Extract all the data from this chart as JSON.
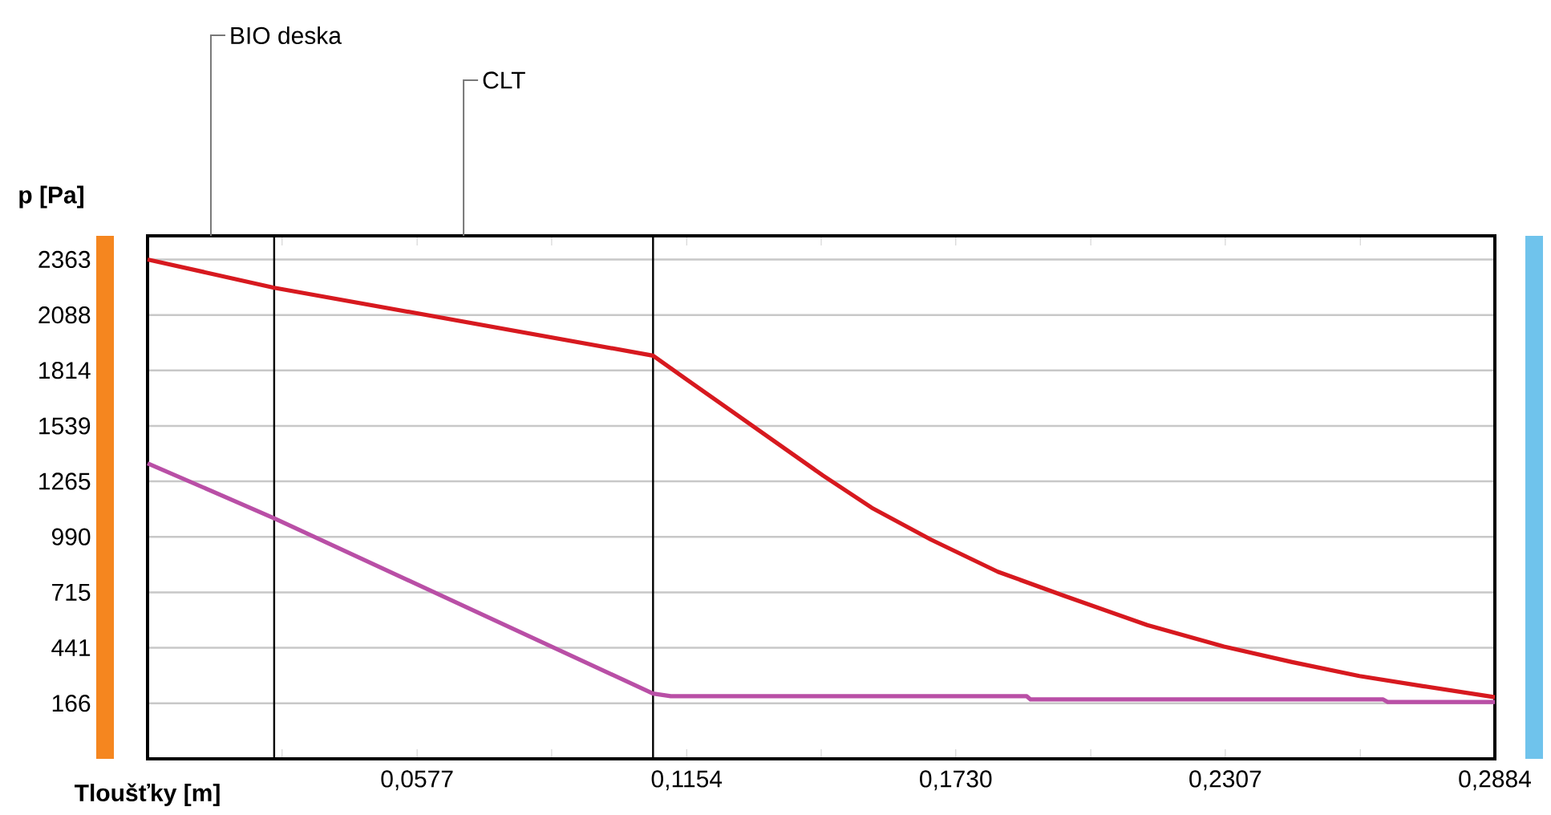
{
  "chart_data": {
    "type": "line",
    "xlabel": "**Tloušťky [m]**",
    "ylabel": "**p [Pa]**",
    "xlim": [
      0,
      0.2884
    ],
    "ylim": [
      -109,
      2480
    ],
    "xticks": [
      {
        "value": 0.0288,
        "label": null
      },
      {
        "value": 0.0577,
        "label": "0,0577"
      },
      {
        "value": 0.0865,
        "label": null
      },
      {
        "value": 0.1154,
        "label": "0,1154"
      },
      {
        "value": 0.1442,
        "label": null
      },
      {
        "value": 0.173,
        "label": "0,1730"
      },
      {
        "value": 0.2019,
        "label": null
      },
      {
        "value": 0.2307,
        "label": "0,2307"
      },
      {
        "value": 0.2596,
        "label": null
      },
      {
        "value": 0.2884,
        "label": "0,2884"
      }
    ],
    "yticks": [
      166,
      441,
      715,
      990,
      1265,
      1539,
      1814,
      2088,
      2363
    ],
    "grid": "y",
    "series": [
      {
        "color": "#d7191f",
        "x": [
          0,
          0.0271,
          0.1082,
          0.1154,
          0.1446,
          0.155,
          0.1677,
          0.182,
          0.1962,
          0.214,
          0.2304,
          0.245,
          0.2594,
          0.273,
          0.2884
        ],
        "values": [
          2363,
          2223,
          1887,
          1769,
          1293,
          1134,
          976,
          817,
          698,
          553,
          447,
          370,
          301,
          251,
          196
        ]
      },
      {
        "color": "#b94fa6",
        "x": [
          0,
          0.0271,
          0.1082,
          0.112,
          0.1882,
          0.189,
          0.2645,
          0.2655,
          0.2884
        ],
        "values": [
          1354,
          1082,
          214,
          201,
          201,
          185,
          185,
          172,
          172
        ]
      }
    ],
    "ref_lines": [
      {
        "axis": "x",
        "value": 0.0271,
        "color": "#000000"
      },
      {
        "axis": "x",
        "value": 0.1082,
        "color": "#000000"
      }
    ],
    "annotations": [
      "BIO deska",
      "CLT"
    ]
  }
}
